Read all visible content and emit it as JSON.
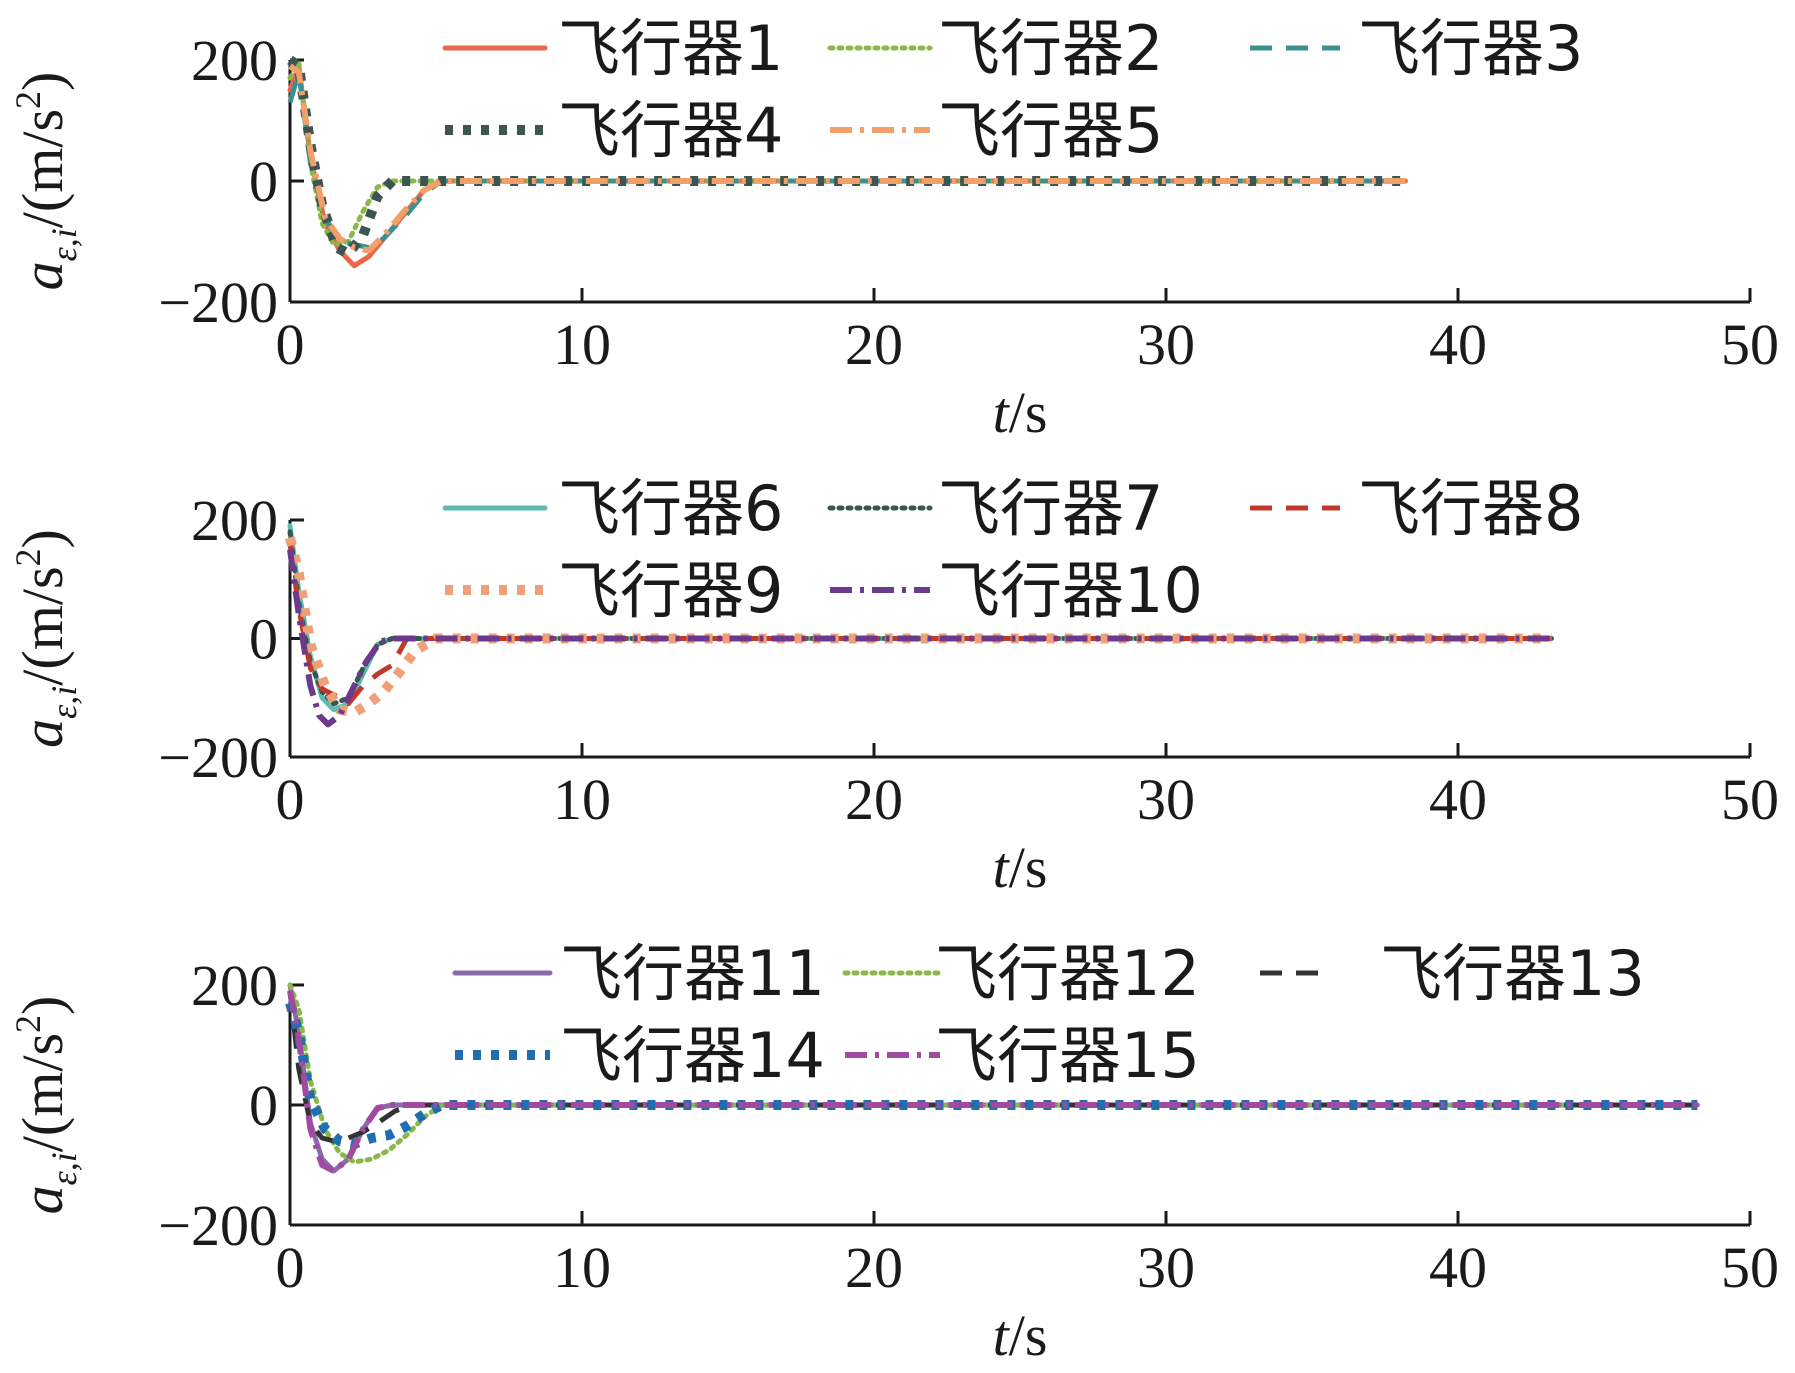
{
  "chart_data": [
    {
      "type": "line",
      "xlabel_italic": "t",
      "xlabel_unit": "/s",
      "ylabel_main": "a",
      "ylabel_sub": "ε,i",
      "ylabel_unit": "/(m/s",
      "ylabel_exp": "2",
      "ylabel_close": ")",
      "xlim": [
        0,
        50
      ],
      "ylim": [
        -200,
        200
      ],
      "xticks": [
        0,
        10,
        20,
        30,
        40,
        50
      ],
      "yticks": [
        -200,
        0,
        200
      ],
      "xtick_labels": [
        "0",
        "10",
        "20",
        "30",
        "40",
        "50"
      ],
      "ytick_labels": [
        "−200",
        "0",
        "200"
      ],
      "legend_position": "top",
      "series": [
        {
          "name": "飞行器1",
          "color": "#e8664a",
          "style": "solid",
          "x": [
            0,
            0.3,
            0.7,
            1.2,
            1.7,
            2.2,
            2.7,
            3.3,
            4.0,
            4.6,
            5.2,
            6,
            10,
            20,
            30,
            38.2
          ],
          "y": [
            150,
            190,
            40,
            -70,
            -115,
            -140,
            -125,
            -90,
            -50,
            -15,
            0,
            0,
            0,
            0,
            0,
            0
          ]
        },
        {
          "name": "飞行器2",
          "color": "#8ab84a",
          "style": "dotted",
          "x": [
            0,
            0.3,
            0.7,
            1.1,
            1.5,
            2.0,
            2.5,
            3.0,
            3.5,
            4.0,
            5,
            10,
            20,
            30,
            38.2
          ],
          "y": [
            170,
            195,
            30,
            -70,
            -105,
            -100,
            -50,
            -10,
            0,
            0,
            0,
            0,
            0,
            0,
            0
          ]
        },
        {
          "name": "飞行器3",
          "color": "#3a9090",
          "style": "dashed",
          "x": [
            0,
            0.3,
            0.7,
            1.2,
            1.7,
            2.2,
            2.7,
            3.2,
            4.0,
            4.6,
            5.2,
            6,
            10,
            20,
            30,
            38.2
          ],
          "y": [
            130,
            180,
            30,
            -60,
            -100,
            -105,
            -110,
            -95,
            -55,
            -20,
            0,
            0,
            0,
            0,
            0,
            0
          ]
        },
        {
          "name": "飞行器4",
          "color": "#3d5552",
          "style": "thickdot",
          "x": [
            0,
            0.3,
            0.7,
            1.1,
            1.6,
            2.0,
            2.5,
            3.0,
            3.5,
            4.0,
            5,
            10,
            20,
            30,
            38.2
          ],
          "y": [
            200,
            190,
            60,
            -40,
            -110,
            -120,
            -90,
            -25,
            0,
            0,
            0,
            0,
            0,
            0,
            0
          ]
        },
        {
          "name": "飞行器5",
          "color": "#f0a068",
          "style": "dashdot",
          "x": [
            0,
            0.3,
            0.7,
            1.2,
            1.7,
            2.2,
            2.7,
            3.3,
            4.0,
            4.6,
            5.2,
            6,
            10,
            20,
            30,
            38.2
          ],
          "y": [
            190,
            180,
            50,
            -60,
            -95,
            -110,
            -115,
            -85,
            -45,
            -15,
            0,
            0,
            0,
            0,
            0,
            0
          ]
        }
      ]
    },
    {
      "type": "line",
      "xlabel_italic": "t",
      "xlabel_unit": "/s",
      "ylabel_main": "a",
      "ylabel_sub": "ε,i",
      "ylabel_unit": "/(m/s",
      "ylabel_exp": "2",
      "ylabel_close": ")",
      "xlim": [
        0,
        50
      ],
      "ylim": [
        -200,
        200
      ],
      "xticks": [
        0,
        10,
        20,
        30,
        40,
        50
      ],
      "yticks": [
        -200,
        0,
        200
      ],
      "xtick_labels": [
        "0",
        "10",
        "20",
        "30",
        "40",
        "50"
      ],
      "ytick_labels": [
        "−200",
        "0",
        "200"
      ],
      "legend_position": "top",
      "series": [
        {
          "name": "飞行器6",
          "color": "#5cbcb0",
          "style": "solid",
          "x": [
            0,
            0.3,
            0.7,
            1.1,
            1.5,
            2.0,
            2.5,
            3.0,
            3.5,
            4,
            10,
            20,
            30,
            40,
            43.2
          ],
          "y": [
            190,
            80,
            -30,
            -100,
            -120,
            -110,
            -60,
            -10,
            0,
            0,
            0,
            0,
            0,
            0,
            0
          ]
        },
        {
          "name": "飞行器7",
          "color": "#3d5552",
          "style": "dotted",
          "x": [
            0,
            0.3,
            0.7,
            1.1,
            1.5,
            2.0,
            2.5,
            3.0,
            3.5,
            4,
            10,
            20,
            30,
            40,
            43.2
          ],
          "y": [
            180,
            60,
            -40,
            -90,
            -110,
            -100,
            -50,
            -10,
            0,
            0,
            0,
            0,
            0,
            0,
            0
          ]
        },
        {
          "name": "飞行器8",
          "color": "#c0392b",
          "style": "dashed",
          "x": [
            0,
            0.3,
            0.7,
            1.1,
            1.5,
            2.0,
            2.5,
            3.0,
            3.5,
            4.0,
            5,
            10,
            20,
            30,
            40,
            43.2
          ],
          "y": [
            160,
            50,
            -50,
            -85,
            -95,
            -110,
            -80,
            -60,
            -45,
            0,
            0,
            0,
            0,
            0,
            0,
            0
          ]
        },
        {
          "name": "飞行器9",
          "color": "#f0a078",
          "style": "thickdot",
          "x": [
            0,
            0.3,
            0.7,
            1.2,
            1.7,
            2.2,
            2.7,
            3.2,
            3.7,
            4.3,
            5,
            10,
            20,
            30,
            40,
            43.2
          ],
          "y": [
            170,
            110,
            -10,
            -80,
            -120,
            -125,
            -110,
            -90,
            -60,
            -20,
            0,
            0,
            0,
            0,
            0,
            0
          ]
        },
        {
          "name": "飞行器10",
          "color": "#6b3a8c",
          "style": "dashdot",
          "x": [
            0,
            0.3,
            0.7,
            1.0,
            1.3,
            1.7,
            2.1,
            2.6,
            3.1,
            3.5,
            4,
            10,
            20,
            30,
            40,
            43.2
          ],
          "y": [
            150,
            40,
            -80,
            -130,
            -145,
            -130,
            -90,
            -40,
            -5,
            0,
            0,
            0,
            0,
            0,
            0,
            0
          ]
        }
      ]
    },
    {
      "type": "line",
      "xlabel_italic": "t",
      "xlabel_unit": "/s",
      "ylabel_main": "a",
      "ylabel_sub": "ε,i",
      "ylabel_unit": "/(m/s",
      "ylabel_exp": "2",
      "ylabel_close": ")",
      "xlim": [
        0,
        50
      ],
      "ylim": [
        -200,
        200
      ],
      "xticks": [
        0,
        10,
        20,
        30,
        40,
        50
      ],
      "yticks": [
        -200,
        0,
        200
      ],
      "xtick_labels": [
        "0",
        "10",
        "20",
        "30",
        "40",
        "50"
      ],
      "ytick_labels": [
        "−200",
        "0",
        "200"
      ],
      "legend_position": "top",
      "series": [
        {
          "name": "飞行器11",
          "color": "#8a6aaa",
          "style": "solid",
          "x": [
            0,
            0.3,
            0.7,
            1.1,
            1.5,
            2.0,
            2.5,
            3.0,
            3.5,
            4,
            10,
            20,
            30,
            40,
            48.2
          ],
          "y": [
            200,
            120,
            -30,
            -90,
            -110,
            -90,
            -40,
            -5,
            0,
            0,
            0,
            0,
            0,
            0,
            0
          ]
        },
        {
          "name": "飞行器12",
          "color": "#8ab84a",
          "style": "dotted",
          "x": [
            0,
            0.3,
            0.7,
            1.2,
            1.7,
            2.2,
            2.8,
            3.4,
            4.0,
            4.6,
            5.2,
            6,
            10,
            20,
            30,
            40,
            48.2
          ],
          "y": [
            200,
            160,
            40,
            -40,
            -80,
            -95,
            -90,
            -75,
            -50,
            -20,
            0,
            0,
            0,
            0,
            0,
            0,
            0
          ]
        },
        {
          "name": "飞行器13",
          "color": "#333333",
          "style": "dashed",
          "x": [
            0,
            0.3,
            0.7,
            1.1,
            1.5,
            2.0,
            2.5,
            3.0,
            3.6,
            4.2,
            5,
            10,
            20,
            30,
            40,
            48.2
          ],
          "y": [
            190,
            60,
            -30,
            -55,
            -60,
            -55,
            -45,
            -30,
            -10,
            0,
            0,
            0,
            0,
            0,
            0,
            0
          ]
        },
        {
          "name": "飞行器14",
          "color": "#1f6fb0",
          "style": "thickdot",
          "x": [
            0,
            0.3,
            0.7,
            1.2,
            1.7,
            2.2,
            2.8,
            3.4,
            4.0,
            4.6,
            5.2,
            6,
            10,
            20,
            30,
            40,
            48.2
          ],
          "y": [
            170,
            120,
            10,
            -40,
            -60,
            -65,
            -55,
            -50,
            -35,
            -15,
            0,
            0,
            0,
            0,
            0,
            0,
            0
          ]
        },
        {
          "name": "飞行器15",
          "color": "#a04aa0",
          "style": "dashdot",
          "x": [
            0,
            0.3,
            0.7,
            1.1,
            1.5,
            2.0,
            2.5,
            3.0,
            3.5,
            4,
            10,
            20,
            30,
            40,
            48.2
          ],
          "y": [
            190,
            110,
            -40,
            -100,
            -110,
            -90,
            -40,
            -5,
            0,
            0,
            0,
            0,
            0,
            0,
            0
          ]
        }
      ]
    }
  ]
}
